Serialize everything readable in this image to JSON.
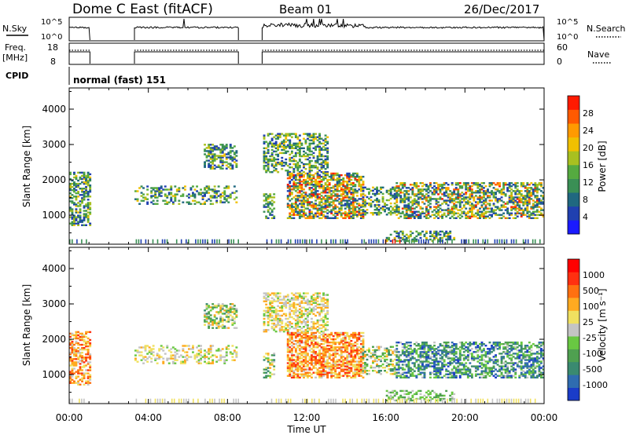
{
  "header": {
    "title": "Dome C East (fitACF)",
    "beam": "Beam 01",
    "date": "26/Dec/2017"
  },
  "strips": {
    "nsky_label": "N.Sky",
    "nsky_ticks": [
      "10^5",
      "10^0"
    ],
    "nsearch_label": "N.Search",
    "nsearch_ticks": [
      "10^5",
      "10^0"
    ],
    "freq_label": "Freq.",
    "freq_unit": "[MHz]",
    "freq_ticks": [
      "18",
      "8"
    ],
    "nave_label": "Nave",
    "nave_ticks": [
      "60",
      "0"
    ],
    "cpid_label": "CPID",
    "cpid_value": "normal (fast) 151"
  },
  "chart_data": [
    {
      "type": "heatmap",
      "name": "power-panel",
      "ylabel": "Slant Range [km]",
      "yticks": [
        1000,
        2000,
        3000,
        4000
      ],
      "ylim": [
        180,
        4600
      ],
      "xlim": [
        0,
        24
      ],
      "colorbar": {
        "label": "Power [dB]",
        "ticks": [
          "4",
          "8",
          "12",
          "16",
          "20",
          "24",
          "28"
        ],
        "colors": [
          "#1a1aff",
          "#2040b0",
          "#206880",
          "#3a8f55",
          "#55aa40",
          "#a8c020",
          "#f0c000",
          "#ff9a00",
          "#ff5a00",
          "#ff1a00"
        ]
      }
    },
    {
      "type": "heatmap",
      "name": "velocity-panel",
      "ylabel": "Slant Range [km]",
      "yticks": [
        1000,
        2000,
        3000,
        4000
      ],
      "ylim": [
        180,
        4600
      ],
      "xlim": [
        0,
        24
      ],
      "xticks": [
        "00:00",
        "04:00",
        "08:00",
        "12:00",
        "16:00",
        "20:00",
        "00:00"
      ],
      "xlabel": "Time UT",
      "colorbar": {
        "label": "Velocity [m s⁻¹]",
        "ticks": [
          "1000",
          "500",
          "100",
          "25",
          "-25",
          "-100",
          "-500",
          "-1000"
        ],
        "colors": [
          "#1a3cc8",
          "#2f6cb0",
          "#3a8a70",
          "#4fa050",
          "#69c842",
          "#c4c4c4",
          "#f0e060",
          "#ffaa20",
          "#ff7010",
          "#ff3010",
          "#ff0000"
        ]
      }
    }
  ]
}
